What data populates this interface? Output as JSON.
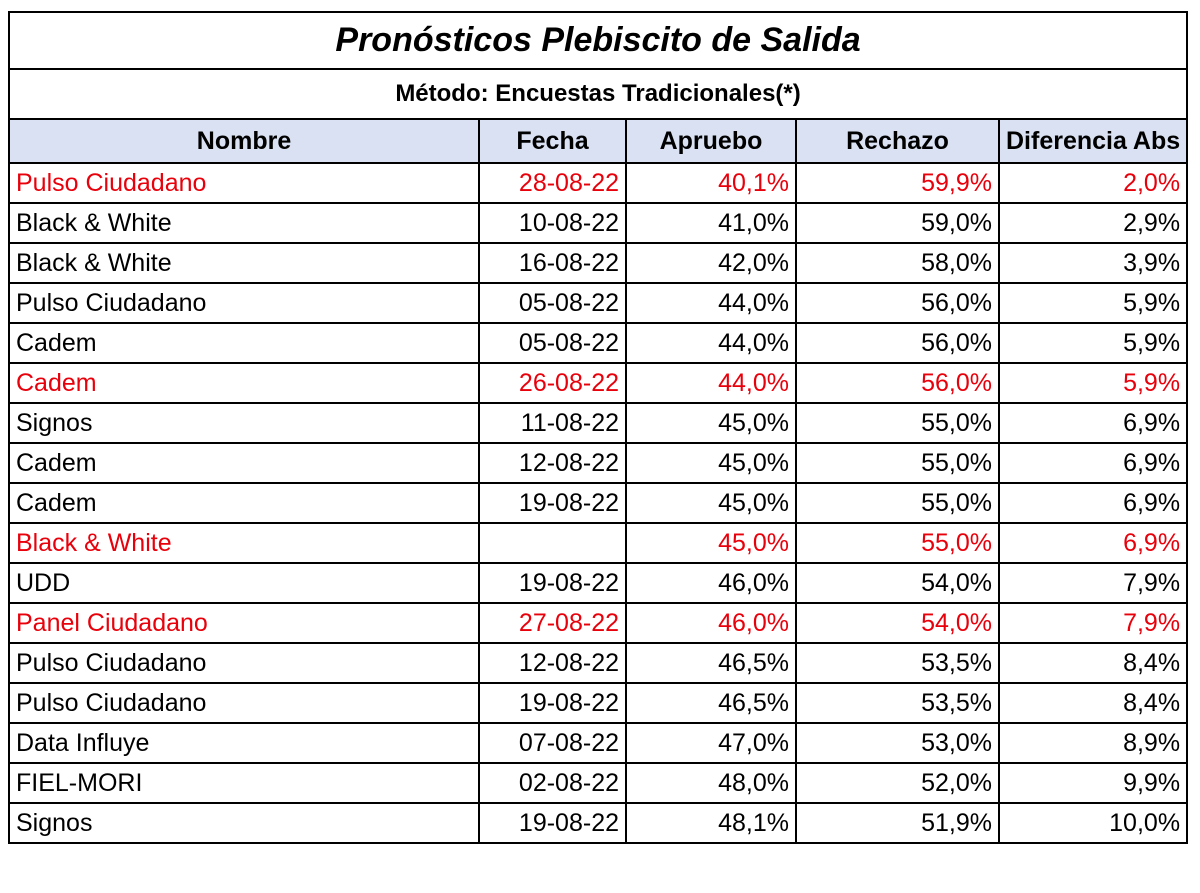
{
  "chart_data": {
    "type": "table",
    "title": "Pronósticos Plebiscito de Salida",
    "subtitle": "Método: Encuestas Tradicionales(*)",
    "columns": [
      "Nombre",
      "Fecha",
      "Apruebo",
      "Rechazo",
      "Diferencia Abs"
    ],
    "highlight_color": "#e8000b",
    "header_color": "#d9e1f2",
    "rows": [
      {
        "name": "Pulso Ciudadano",
        "date": "28-08-22",
        "apruebo": "40,1%",
        "rechazo": "59,9%",
        "diferencia": "2,0%",
        "highlight": true
      },
      {
        "name": "Black & White",
        "date": "10-08-22",
        "apruebo": "41,0%",
        "rechazo": "59,0%",
        "diferencia": "2,9%",
        "highlight": false
      },
      {
        "name": "Black & White",
        "date": "16-08-22",
        "apruebo": "42,0%",
        "rechazo": "58,0%",
        "diferencia": "3,9%",
        "highlight": false
      },
      {
        "name": "Pulso Ciudadano",
        "date": "05-08-22",
        "apruebo": "44,0%",
        "rechazo": "56,0%",
        "diferencia": "5,9%",
        "highlight": false
      },
      {
        "name": "Cadem",
        "date": "05-08-22",
        "apruebo": "44,0%",
        "rechazo": "56,0%",
        "diferencia": "5,9%",
        "highlight": false
      },
      {
        "name": "Cadem",
        "date": "26-08-22",
        "apruebo": "44,0%",
        "rechazo": "56,0%",
        "diferencia": "5,9%",
        "highlight": true
      },
      {
        "name": "Signos",
        "date": "11-08-22",
        "apruebo": "45,0%",
        "rechazo": "55,0%",
        "diferencia": "6,9%",
        "highlight": false
      },
      {
        "name": "Cadem",
        "date": "12-08-22",
        "apruebo": "45,0%",
        "rechazo": "55,0%",
        "diferencia": "6,9%",
        "highlight": false
      },
      {
        "name": "Cadem",
        "date": "19-08-22",
        "apruebo": "45,0%",
        "rechazo": "55,0%",
        "diferencia": "6,9%",
        "highlight": false
      },
      {
        "name": "Black & White",
        "date": "",
        "apruebo": "45,0%",
        "rechazo": "55,0%",
        "diferencia": "6,9%",
        "highlight": true
      },
      {
        "name": "UDD",
        "date": "19-08-22",
        "apruebo": "46,0%",
        "rechazo": "54,0%",
        "diferencia": "7,9%",
        "highlight": false
      },
      {
        "name": "Panel Ciudadano",
        "date": "27-08-22",
        "apruebo": "46,0%",
        "rechazo": "54,0%",
        "diferencia": "7,9%",
        "highlight": true
      },
      {
        "name": "Pulso Ciudadano",
        "date": "12-08-22",
        "apruebo": "46,5%",
        "rechazo": "53,5%",
        "diferencia": "8,4%",
        "highlight": false
      },
      {
        "name": "Pulso Ciudadano",
        "date": "19-08-22",
        "apruebo": "46,5%",
        "rechazo": "53,5%",
        "diferencia": "8,4%",
        "highlight": false
      },
      {
        "name": "Data Influye",
        "date": "07-08-22",
        "apruebo": "47,0%",
        "rechazo": "53,0%",
        "diferencia": "8,9%",
        "highlight": false
      },
      {
        "name": "FIEL-MORI",
        "date": "02-08-22",
        "apruebo": "48,0%",
        "rechazo": "52,0%",
        "diferencia": "9,9%",
        "highlight": false
      },
      {
        "name": "Signos",
        "date": "19-08-22",
        "apruebo": "48,1%",
        "rechazo": "51,9%",
        "diferencia": "10,0%",
        "highlight": false
      }
    ]
  }
}
